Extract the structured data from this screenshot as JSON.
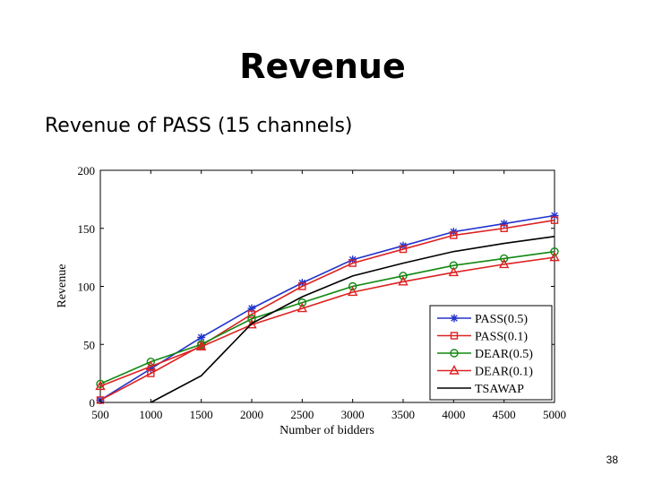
{
  "slide": {
    "title": "Revenue",
    "subtitle": "Revenue of PASS (15 channels)",
    "page_number": "38"
  },
  "chart_data": {
    "type": "line",
    "title": "",
    "xlabel": "Number of bidders",
    "ylabel": "Revenue",
    "xlim": [
      500,
      5000
    ],
    "ylim": [
      0,
      200
    ],
    "x": [
      500,
      1000,
      1500,
      2000,
      2500,
      3000,
      3500,
      4000,
      4500,
      5000
    ],
    "x_ticks": [
      "500",
      "1000",
      "1500",
      "2000",
      "2500",
      "3000",
      "3500",
      "4000",
      "4500",
      "5000"
    ],
    "y_ticks": [
      "0",
      "50",
      "100",
      "150",
      "200"
    ],
    "legend_position": "bottom-right",
    "series": [
      {
        "name": "PASS(0.5)",
        "color": "#2233cc",
        "marker": "star",
        "values": [
          2,
          29,
          56,
          81,
          103,
          123,
          135,
          147,
          154,
          161
        ]
      },
      {
        "name": "PASS(0.1)",
        "color": "#dd2222",
        "marker": "square",
        "values": [
          2,
          25,
          49,
          76,
          100,
          120,
          132,
          144,
          150,
          157
        ]
      },
      {
        "name": "DEAR(0.5)",
        "color": "#118811",
        "marker": "circle",
        "values": [
          16,
          35,
          50,
          72,
          86,
          100,
          109,
          118,
          124,
          130
        ]
      },
      {
        "name": "DEAR(0.1)",
        "color": "#dd2222",
        "marker": "triangle",
        "values": [
          14,
          31,
          48,
          67,
          81,
          95,
          104,
          112,
          119,
          125
        ]
      },
      {
        "name": "TSAWAP",
        "color": "#000000",
        "marker": "none",
        "values": [
          null,
          0,
          23,
          68,
          91,
          109,
          120,
          130,
          137,
          143
        ]
      }
    ]
  }
}
